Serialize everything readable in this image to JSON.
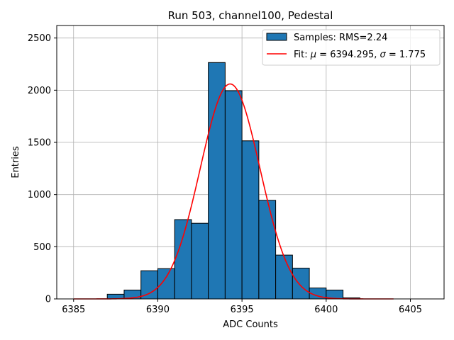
{
  "chart_data": {
    "type": "bar",
    "title": "Run 503, channel100, Pedestal",
    "xlabel": "ADC Counts",
    "ylabel": "Entries",
    "xlim": [
      6384,
      6407
    ],
    "ylim": [
      0,
      2620
    ],
    "xticks": [
      6385,
      6390,
      6395,
      6400,
      6405
    ],
    "yticks": [
      0,
      500,
      1000,
      1500,
      2000,
      2500
    ],
    "grid": true,
    "legend_position": "top-right",
    "bin_width": 1,
    "histogram": {
      "name": "Samples: RMS=2.24",
      "color": "#1f77b4",
      "edge_color": "#000000",
      "bin_starts": [
        6387,
        6388,
        6389,
        6390,
        6391,
        6392,
        6393,
        6394,
        6395,
        6396,
        6397,
        6398,
        6399,
        6400,
        6401
      ],
      "values": [
        45,
        85,
        270,
        290,
        760,
        725,
        2265,
        1995,
        1515,
        945,
        420,
        295,
        105,
        85,
        10
      ]
    },
    "fit": {
      "name": "Fit: μ = 6394.295, σ = 1.775",
      "color": "#ff0000",
      "mu": 6394.295,
      "sigma": 1.775,
      "amplitude": 2060,
      "x_range": [
        6385,
        6404
      ]
    }
  },
  "legend": {
    "samples_label": "Samples: RMS=2.24",
    "fit_prefix": "Fit: ",
    "mu_symbol": "μ",
    "fit_mu_text": " = 6394.295, ",
    "sigma_symbol": "σ",
    "fit_sigma_text": " = 1.775"
  }
}
